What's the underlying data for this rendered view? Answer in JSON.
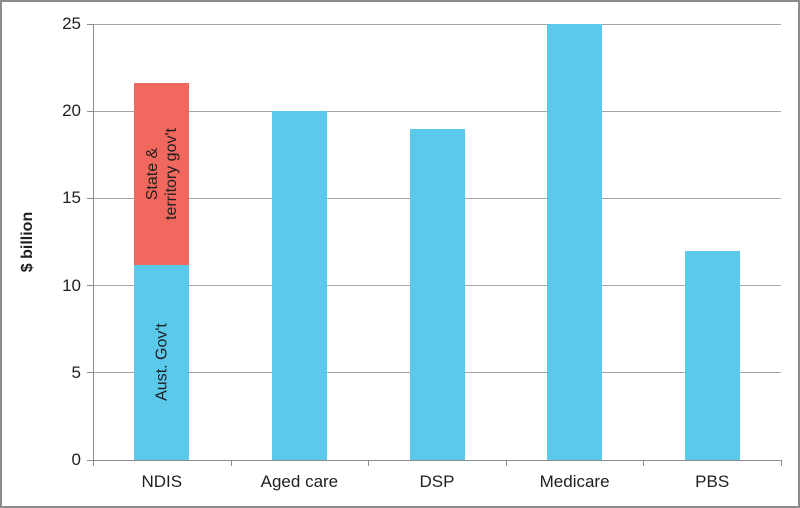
{
  "chart_data": {
    "type": "bar",
    "stacked": true,
    "title": "",
    "ylabel": "$ billion",
    "xlabel": "",
    "ylim": [
      0,
      25
    ],
    "yticks": [
      0,
      5,
      10,
      15,
      20,
      25
    ],
    "grid": true,
    "legend_position": "none",
    "categories": [
      "NDIS",
      "Aged care",
      "DSP",
      "Medicare",
      "PBS"
    ],
    "series": [
      {
        "name": "Aust. Gov't",
        "color": "#5BC9EA",
        "values": [
          11.2,
          20,
          19,
          25,
          12
        ]
      },
      {
        "name": "State & territory gov't",
        "color": "#F0685E",
        "values": [
          10.4,
          0,
          0,
          0,
          0
        ]
      }
    ],
    "in_bar_labels": [
      {
        "category_index": 0,
        "series_index": 0,
        "text": "Aust. Gov't"
      },
      {
        "category_index": 0,
        "series_index": 1,
        "text": "State &\nterritory gov't"
      }
    ]
  },
  "colors": {
    "bar_blue": "#5BC9EA",
    "bar_red": "#F0685E",
    "gridline": "#A6A6A6",
    "axis": "#8C8C8C",
    "border": "#8C8C8C",
    "text": "#1F1F1F",
    "background": "#FFFFFF"
  }
}
